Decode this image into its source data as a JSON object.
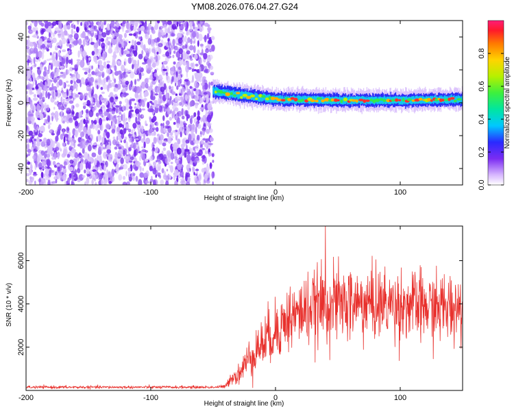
{
  "title": "YM08.2026.076.04.27.G24",
  "colors": {
    "snr_line": "#e8302c",
    "noise_purple": "#7a2cf0",
    "noise_light": "#d9c2fb"
  },
  "chart_data": [
    {
      "id": "spectrogram",
      "type": "heatmap",
      "xlabel": "Height of straight line (km)",
      "ylabel": "Frequency (Hz)",
      "xlim": [
        -200,
        150
      ],
      "ylim": [
        -50,
        50
      ],
      "xticks": [
        -200,
        -100,
        0,
        100
      ],
      "yticks": [
        -40,
        -20,
        0,
        20,
        40
      ],
      "noise_region_x": [
        -200,
        -50
      ],
      "signal_start_km": -50,
      "signal_track": {
        "x": [
          -50,
          -40,
          -30,
          -20,
          -10,
          0,
          20,
          50,
          100,
          150
        ],
        "freq_hz": [
          7,
          6,
          5,
          4,
          3,
          2,
          2,
          1.5,
          1.5,
          2
        ]
      },
      "colorbar": {
        "label": "Normalized spectral amplitude",
        "range": [
          0,
          1
        ],
        "ticks": [
          0.0,
          0.2,
          0.4,
          0.6,
          0.8
        ],
        "tick_labels": [
          "0.0",
          "0.2",
          "0.4",
          "0.6",
          "0.8"
        ]
      }
    },
    {
      "id": "snr",
      "type": "line",
      "xlabel": "Height of straight line (km)",
      "ylabel": "SNR (10 * v/v)",
      "xlim": [
        -200,
        150
      ],
      "ylim": [
        0,
        7600
      ],
      "xticks": [
        -200,
        -100,
        0,
        100
      ],
      "yticks": [
        2000,
        4000,
        6000
      ],
      "series_shape": {
        "x": [
          -200,
          -50,
          -40,
          -36,
          -30,
          -20,
          -10,
          0,
          10,
          20,
          30,
          40,
          50,
          70,
          90,
          110,
          130,
          150
        ],
        "mean": [
          150,
          150,
          180,
          600,
          700,
          1600,
          2200,
          2800,
          3300,
          3600,
          3800,
          4000,
          4000,
          4000,
          4000,
          3900,
          3800,
          3900
        ],
        "spread": [
          60,
          60,
          80,
          300,
          400,
          900,
          1100,
          1300,
          1400,
          1500,
          1500,
          1600,
          1600,
          1600,
          1500,
          1500,
          1500,
          1500
        ],
        "peak": {
          "x": 40,
          "y": 7600
        }
      }
    }
  ]
}
